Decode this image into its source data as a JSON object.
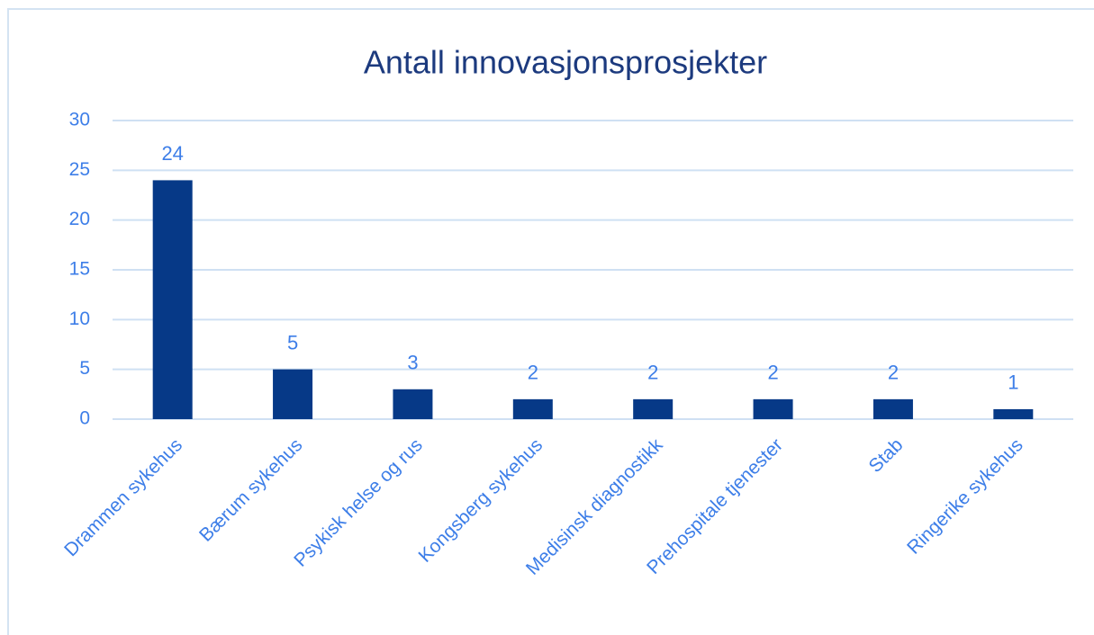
{
  "chart_data": {
    "type": "bar",
    "title": "Antall innovasjonsprosjekter",
    "categories": [
      "Drammen sykehus",
      "Bærum sykehus",
      "Psykisk helse og rus",
      "Kongsberg sykehus",
      "Medisinsk diagnostikk",
      "Prehospitale tjenester",
      "Stab",
      "Ringerike sykehus"
    ],
    "values": [
      24,
      5,
      3,
      2,
      2,
      2,
      2,
      1
    ],
    "color": "#063987",
    "ylim": [
      0,
      30
    ],
    "yticks": [
      0,
      5,
      10,
      15,
      20,
      25,
      30
    ],
    "grid": true
  }
}
